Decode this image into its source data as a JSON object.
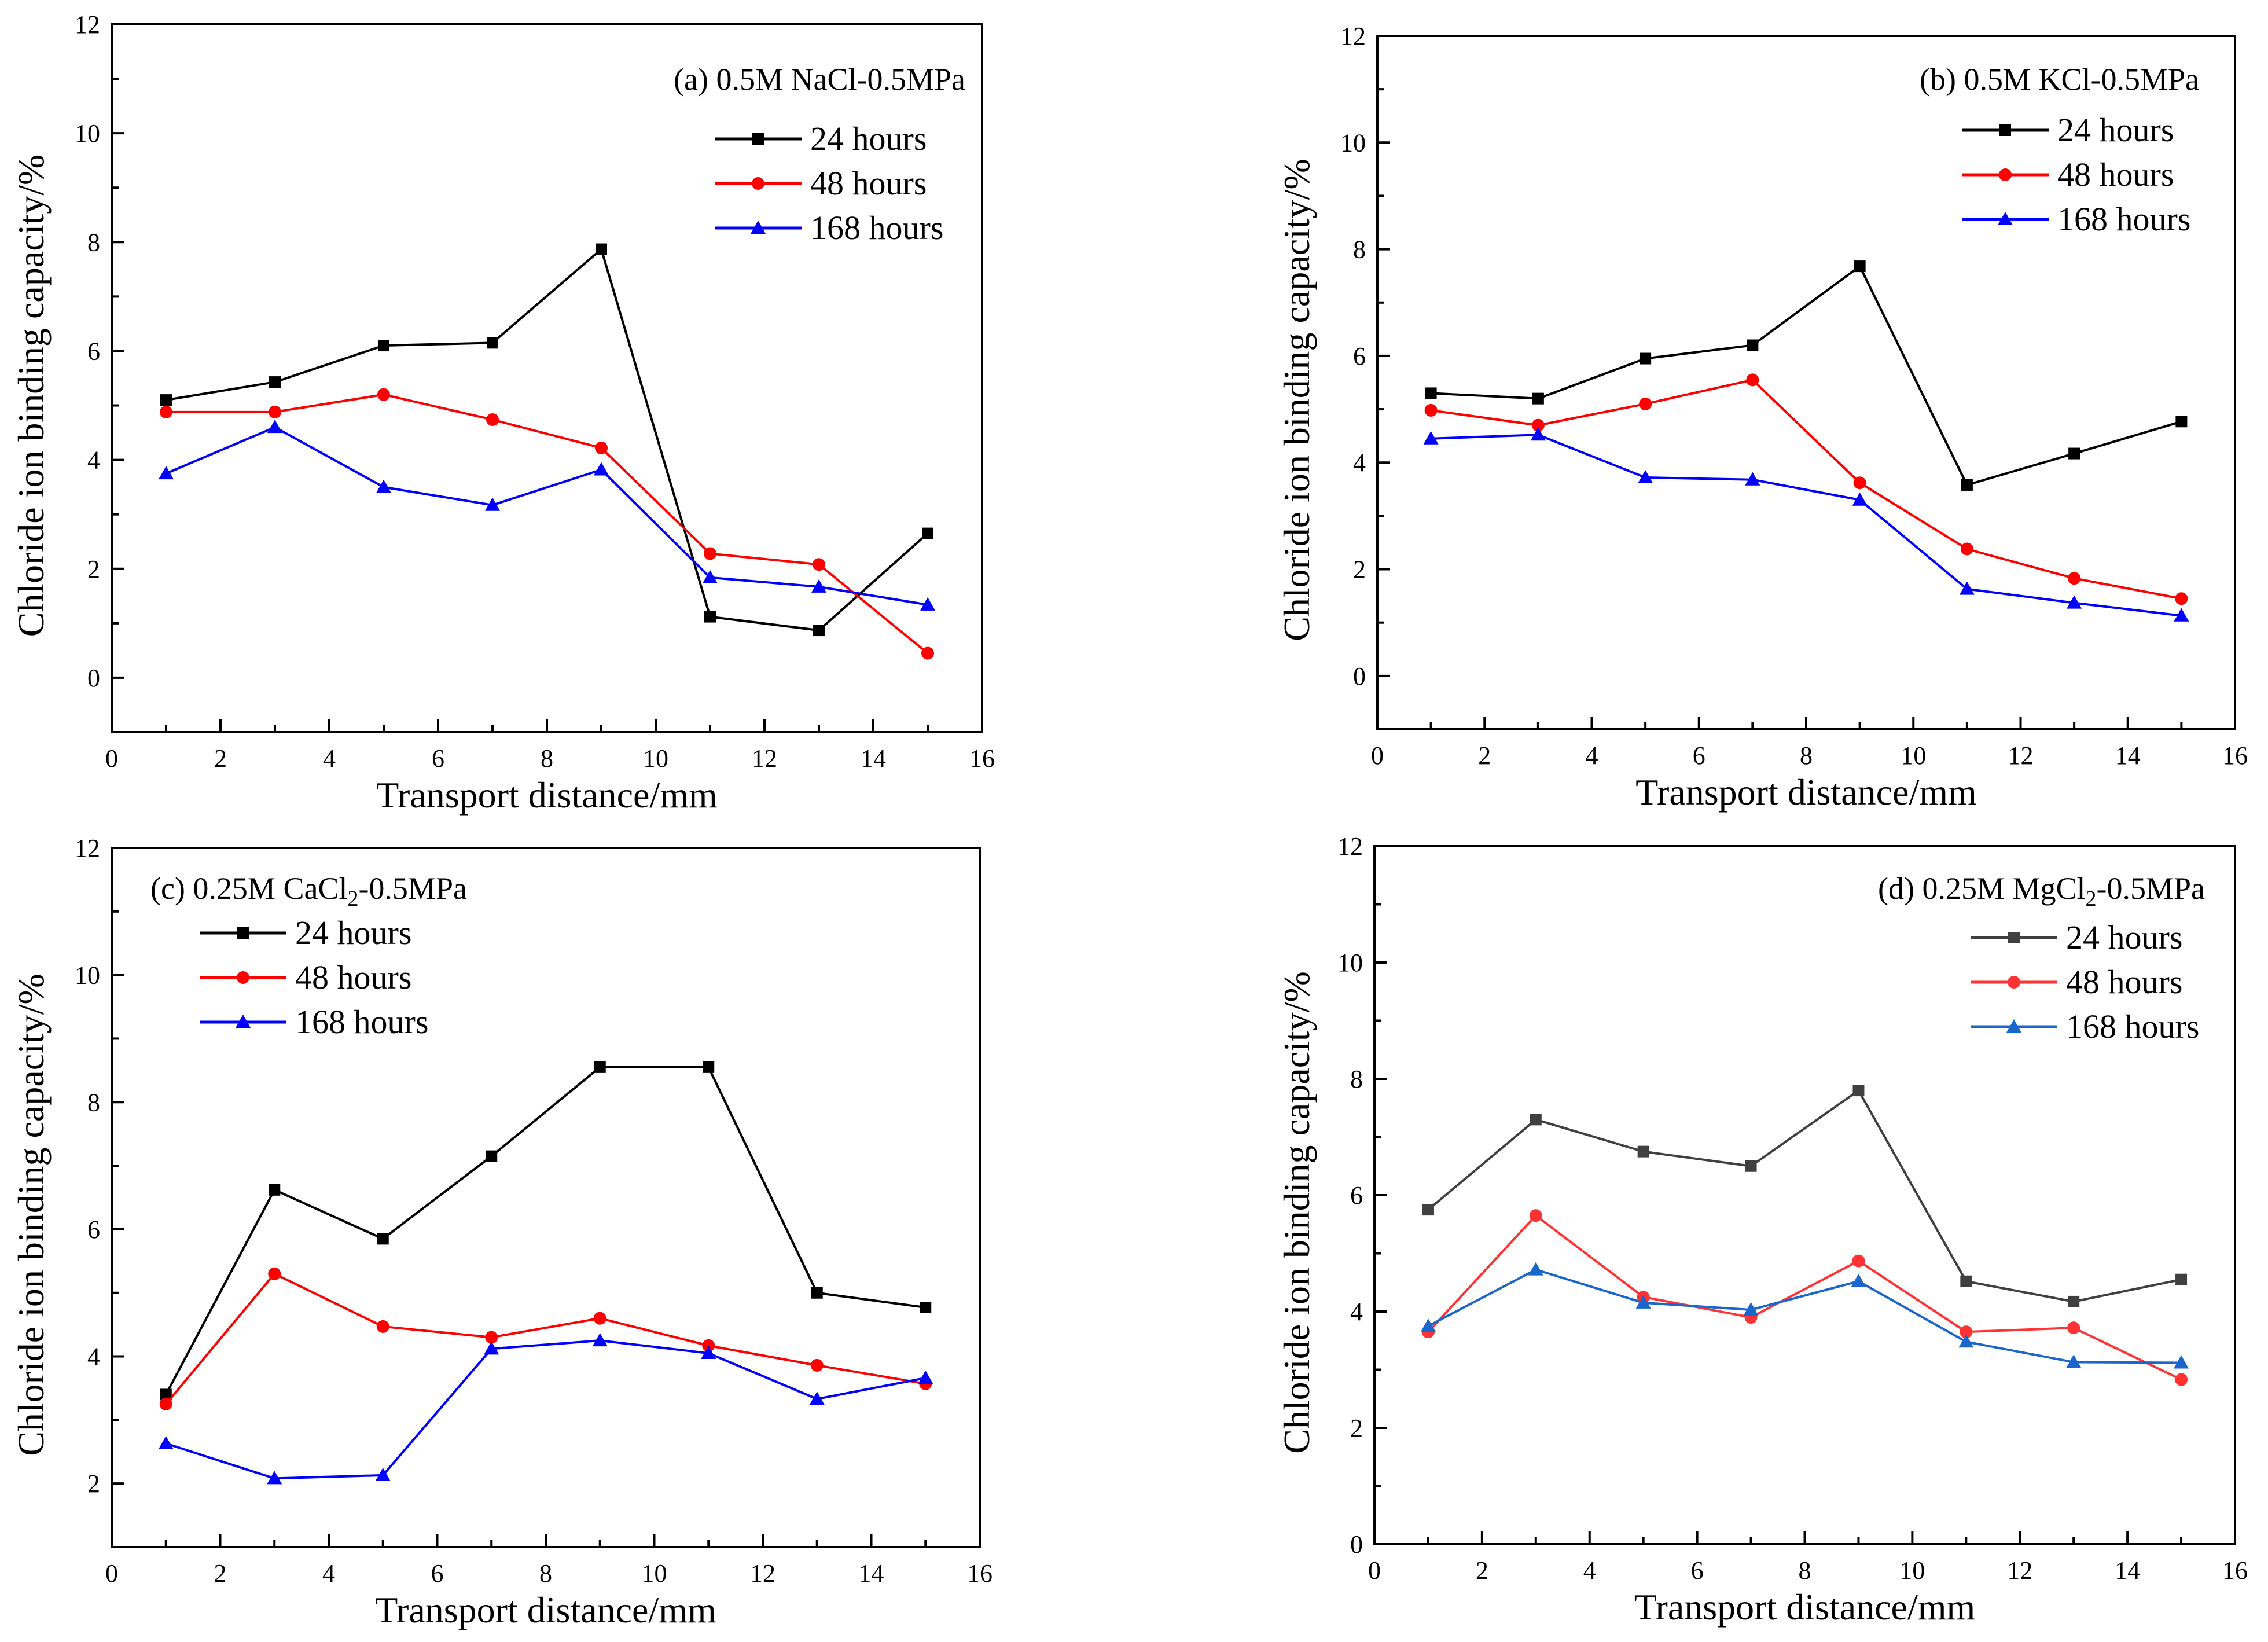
{
  "figure": {
    "panels": [
      {
        "id": "a",
        "title_parts": [
          "(a) 0.5M NaCl-0.5MPa"
        ]
      },
      {
        "id": "b",
        "title_parts": [
          "(b) 0.5M KCl-0.5MPa"
        ]
      },
      {
        "id": "c",
        "title_parts": [
          "(c) 0.25M CaCl",
          "2",
          "-0.5MPa"
        ]
      },
      {
        "id": "d",
        "title_parts": [
          "(d) 0.25M MgCl",
          "2",
          "-0.5MPa"
        ]
      }
    ]
  },
  "chart_data": [
    {
      "type": "line",
      "title": "(a) 0.5M NaCl-0.5MPa",
      "xlabel": "Transport distance/mm",
      "ylabel": "Chloride ion binding capacity/%",
      "xlim": [
        0,
        16
      ],
      "ylim": [
        -1,
        12
      ],
      "xticks": [
        0,
        2,
        4,
        6,
        8,
        10,
        12,
        14,
        16
      ],
      "yticks": [
        0,
        2,
        4,
        6,
        8,
        10,
        12
      ],
      "legend_position": "top-right",
      "x": [
        1,
        3,
        5,
        7,
        9,
        11,
        13,
        15
      ],
      "series": [
        {
          "name": "24 hours",
          "color": "#000000",
          "marker": "square",
          "values": [
            5.1,
            5.43,
            6.1,
            6.15,
            7.87,
            1.12,
            0.87,
            2.65
          ]
        },
        {
          "name": "48 hours",
          "color": "#ff0000",
          "marker": "circle",
          "values": [
            4.88,
            4.88,
            5.2,
            4.74,
            4.22,
            2.28,
            2.08,
            0.45
          ]
        },
        {
          "name": "168 hours",
          "color": "#0000ff",
          "marker": "triangle",
          "values": [
            3.75,
            4.6,
            3.5,
            3.17,
            3.82,
            1.84,
            1.67,
            1.34
          ]
        }
      ]
    },
    {
      "type": "line",
      "title": "(b) 0.5M KCl-0.5MPa",
      "xlabel": "Transport distance/mm",
      "ylabel": "Chloride ion binding capacity/%",
      "xlim": [
        0,
        16
      ],
      "ylim": [
        -1,
        12
      ],
      "xticks": [
        0,
        2,
        4,
        6,
        8,
        10,
        12,
        14,
        16
      ],
      "yticks": [
        0,
        2,
        4,
        6,
        8,
        10,
        12
      ],
      "legend_position": "top-right",
      "x": [
        1,
        3,
        5,
        7,
        9,
        11,
        13,
        15
      ],
      "series": [
        {
          "name": "24 hours",
          "color": "#000000",
          "marker": "square",
          "values": [
            5.3,
            5.2,
            5.95,
            6.2,
            7.68,
            3.58,
            4.17,
            4.77
          ]
        },
        {
          "name": "48 hours",
          "color": "#ff0000",
          "marker": "circle",
          "values": [
            4.98,
            4.7,
            5.1,
            5.55,
            3.62,
            2.38,
            1.83,
            1.45
          ]
        },
        {
          "name": "168 hours",
          "color": "#0000ff",
          "marker": "triangle",
          "values": [
            4.45,
            4.52,
            3.72,
            3.68,
            3.3,
            1.63,
            1.37,
            1.13
          ]
        }
      ]
    },
    {
      "type": "line",
      "title": "(c) 0.25M CaCl2-0.5MPa",
      "xlabel": "Transport distance/mm",
      "ylabel": "Chloride ion binding capacity/%",
      "xlim": [
        0,
        16
      ],
      "ylim": [
        1,
        12
      ],
      "xticks": [
        0,
        2,
        4,
        6,
        8,
        10,
        12,
        14,
        16
      ],
      "yticks": [
        2,
        4,
        6,
        8,
        10,
        12
      ],
      "legend_position": "top-left",
      "x": [
        1,
        3,
        5,
        7,
        9,
        11,
        13,
        15
      ],
      "series": [
        {
          "name": "24 hours",
          "color": "#000000",
          "marker": "square",
          "values": [
            3.4,
            6.62,
            5.85,
            7.15,
            8.55,
            8.55,
            5.0,
            4.77
          ]
        },
        {
          "name": "48 hours",
          "color": "#ff0000",
          "marker": "circle",
          "values": [
            3.25,
            5.3,
            4.47,
            4.3,
            4.6,
            4.17,
            3.86,
            3.57
          ]
        },
        {
          "name": "168 hours",
          "color": "#0000ff",
          "marker": "triangle",
          "values": [
            2.63,
            2.08,
            2.13,
            4.12,
            4.25,
            4.05,
            3.33,
            3.66
          ]
        }
      ]
    },
    {
      "type": "line",
      "title": "(d) 0.25M MgCl2-0.5MPa",
      "xlabel": "Transport distance/mm",
      "ylabel": "Chloride ion binding capacity/%",
      "xlim": [
        0,
        16
      ],
      "ylim": [
        0,
        12
      ],
      "xticks": [
        0,
        2,
        4,
        6,
        8,
        10,
        12,
        14,
        16
      ],
      "yticks": [
        0,
        2,
        4,
        6,
        8,
        10,
        12
      ],
      "legend_position": "top-right",
      "x": [
        1,
        3,
        5,
        7,
        9,
        11,
        13,
        15
      ],
      "series": [
        {
          "name": "24 hours",
          "color": "#404040",
          "marker": "square",
          "values": [
            5.75,
            7.3,
            6.75,
            6.5,
            7.8,
            4.52,
            4.17,
            4.55
          ]
        },
        {
          "name": "48 hours",
          "color": "#ff3333",
          "marker": "circle",
          "values": [
            3.65,
            5.65,
            4.25,
            3.9,
            4.87,
            3.65,
            3.72,
            2.83
          ]
        },
        {
          "name": "168 hours",
          "color": "#1a66cc",
          "marker": "triangle",
          "values": [
            3.75,
            4.72,
            4.15,
            4.03,
            4.52,
            3.48,
            3.13,
            3.12
          ]
        }
      ]
    }
  ]
}
